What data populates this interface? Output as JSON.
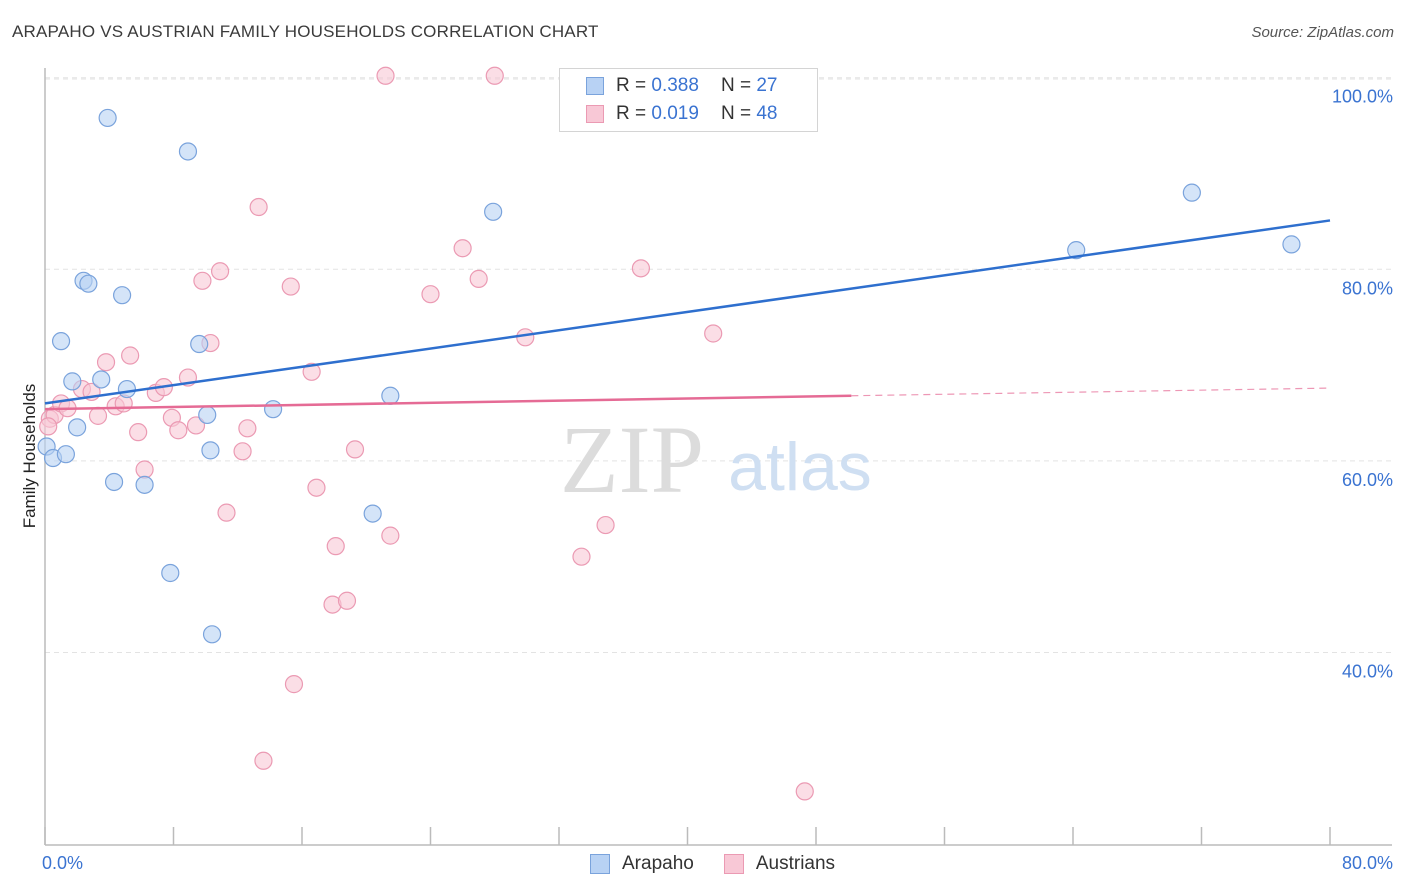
{
  "title": "ARAPAHO VS AUSTRIAN FAMILY HOUSEHOLDS CORRELATION CHART",
  "source": "Source: ZipAtlas.com",
  "watermark": {
    "zip": "ZIP",
    "atlas": "atlas"
  },
  "legend": {
    "arapaho": {
      "r_label": "R =",
      "r_value": "0.388",
      "n_label": "N =",
      "n_value": "27"
    },
    "austrians": {
      "r_label": "R =",
      "r_value": "0.019",
      "n_label": "N =",
      "n_value": "48"
    }
  },
  "colors": {
    "arapaho_fill": "#b8d2f4",
    "arapaho_stroke": "#7aa3dc",
    "arapaho_line": "#2e6fce",
    "austrians_fill": "#f8c8d6",
    "austrians_stroke": "#eb9ab3",
    "austrians_line": "#e56b95",
    "axis_label": "#3a73d1",
    "grid": "#e3e3e3"
  },
  "chart_data": {
    "type": "scatter",
    "title": "ARAPAHO VS AUSTRIAN FAMILY HOUSEHOLDS CORRELATION CHART",
    "xlabel": "",
    "ylabel": "Family Households",
    "xlim": [
      0,
      80
    ],
    "ylim": [
      20,
      102
    ],
    "x_tick_labels": [
      {
        "value": 0,
        "label": "0.0%"
      },
      {
        "value": 80,
        "label": "80.0%"
      }
    ],
    "y_tick_labels": [
      {
        "value": 40,
        "label": "40.0%"
      },
      {
        "value": 60,
        "label": "60.0%"
      },
      {
        "value": 80,
        "label": "80.0%"
      },
      {
        "value": 100,
        "label": "100.0%"
      }
    ],
    "series": [
      {
        "name": "Arapaho",
        "points": [
          [
            0.1,
            61.5
          ],
          [
            0.5,
            60.3
          ],
          [
            1.0,
            72.5
          ],
          [
            1.3,
            60.7
          ],
          [
            1.7,
            68.3
          ],
          [
            2.0,
            63.5
          ],
          [
            2.4,
            78.8
          ],
          [
            2.7,
            78.5
          ],
          [
            3.5,
            68.5
          ],
          [
            4.3,
            57.8
          ],
          [
            4.8,
            77.3
          ],
          [
            5.1,
            67.5
          ],
          [
            6.2,
            57.5
          ],
          [
            7.8,
            48.3
          ],
          [
            8.9,
            92.3
          ],
          [
            9.6,
            72.2
          ],
          [
            10.1,
            64.8
          ],
          [
            10.3,
            61.1
          ],
          [
            10.4,
            41.9
          ],
          [
            14.2,
            65.4
          ],
          [
            20.4,
            54.5
          ],
          [
            21.5,
            66.8
          ],
          [
            27.9,
            86.0
          ],
          [
            3.9,
            95.8
          ],
          [
            64.2,
            82.0
          ],
          [
            71.4,
            88.0
          ],
          [
            77.6,
            82.6
          ]
        ],
        "trend": {
          "x": [
            0,
            80
          ],
          "y": [
            66.0,
            85.1
          ]
        }
      },
      {
        "name": "Austrians",
        "points": [
          [
            0.3,
            64.4
          ],
          [
            0.6,
            64.8
          ],
          [
            1.0,
            66.0
          ],
          [
            1.4,
            65.5
          ],
          [
            2.3,
            67.5
          ],
          [
            2.9,
            67.2
          ],
          [
            3.3,
            64.7
          ],
          [
            3.8,
            70.3
          ],
          [
            4.4,
            65.7
          ],
          [
            4.9,
            66.0
          ],
          [
            5.3,
            71.0
          ],
          [
            5.8,
            63.0
          ],
          [
            6.2,
            59.1
          ],
          [
            6.9,
            67.1
          ],
          [
            7.4,
            67.7
          ],
          [
            7.9,
            64.5
          ],
          [
            8.3,
            63.2
          ],
          [
            8.9,
            68.7
          ],
          [
            9.4,
            63.7
          ],
          [
            9.8,
            78.8
          ],
          [
            10.3,
            72.3
          ],
          [
            10.9,
            79.8
          ],
          [
            11.3,
            54.6
          ],
          [
            12.3,
            61.0
          ],
          [
            12.6,
            63.4
          ],
          [
            13.3,
            86.5
          ],
          [
            13.6,
            28.7
          ],
          [
            15.3,
            78.2
          ],
          [
            15.5,
            36.7
          ],
          [
            16.6,
            69.3
          ],
          [
            16.9,
            57.2
          ],
          [
            17.9,
            45.0
          ],
          [
            18.1,
            51.1
          ],
          [
            18.8,
            45.4
          ],
          [
            19.3,
            61.2
          ],
          [
            21.2,
            100.2
          ],
          [
            21.5,
            52.2
          ],
          [
            24.0,
            77.4
          ],
          [
            26.0,
            82.2
          ],
          [
            27.0,
            79.0
          ],
          [
            28.0,
            100.2
          ],
          [
            29.9,
            72.9
          ],
          [
            33.4,
            50.0
          ],
          [
            34.9,
            53.3
          ],
          [
            37.1,
            80.1
          ],
          [
            41.6,
            73.3
          ],
          [
            47.3,
            25.5
          ],
          [
            0.2,
            63.6
          ]
        ],
        "trend": {
          "x": [
            0,
            50.2
          ],
          "y": [
            65.4,
            66.8
          ]
        },
        "trend_dashed": {
          "x": [
            50.2,
            80
          ],
          "y": [
            66.8,
            67.6
          ]
        }
      }
    ],
    "legend_labels": [
      "Arapaho",
      "Austrians"
    ]
  }
}
